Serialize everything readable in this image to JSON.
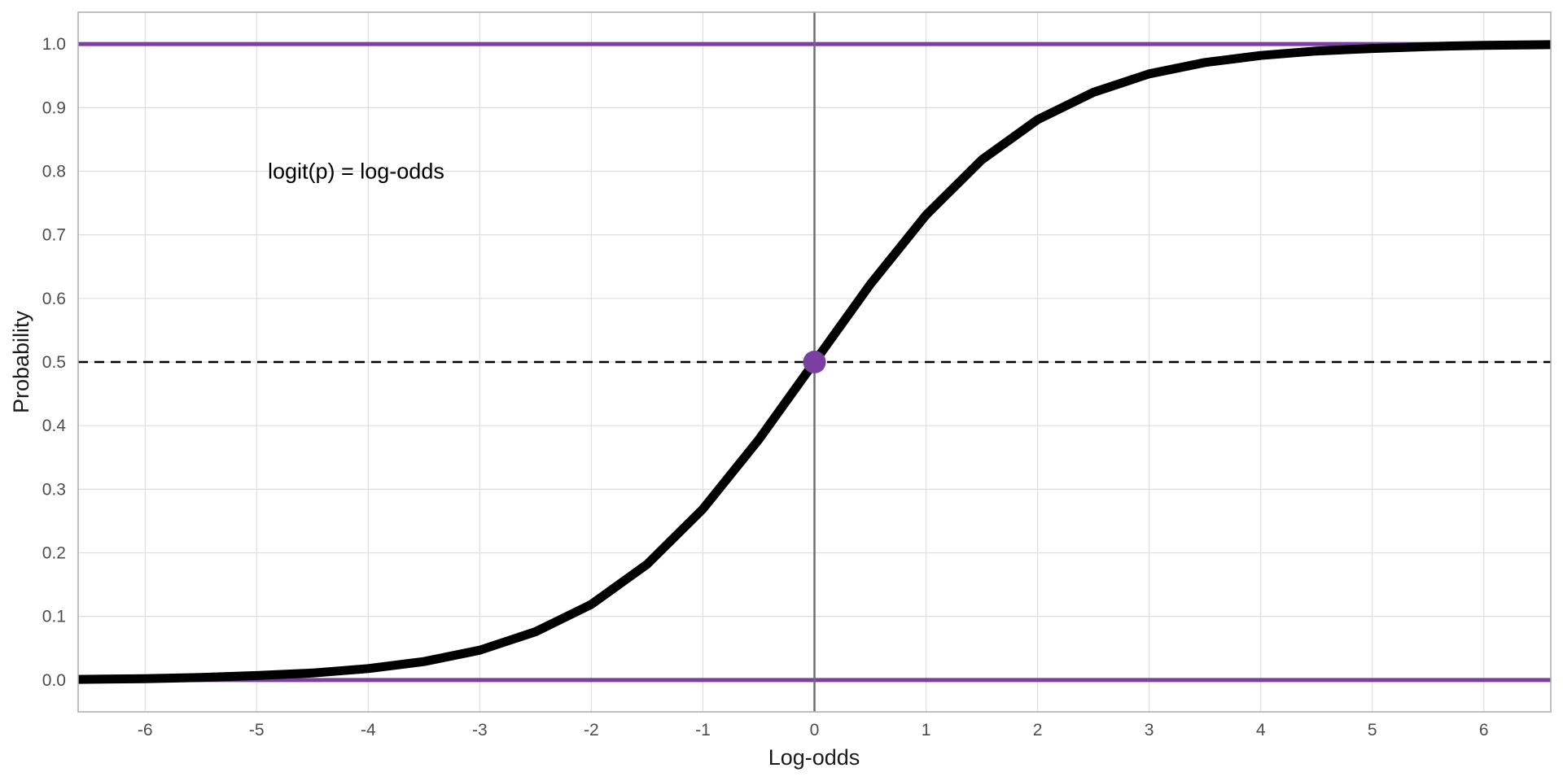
{
  "chart_data": {
    "type": "line",
    "title": "",
    "xlabel": "Log-odds",
    "ylabel": "Probability",
    "xlim": [
      -6.6,
      6.6
    ],
    "ylim": [
      -0.05,
      1.05
    ],
    "x_ticks": [
      -6,
      -5,
      -4,
      -3,
      -2,
      -1,
      0,
      1,
      2,
      3,
      4,
      5,
      6
    ],
    "x_tick_labels": [
      "-6",
      "-5",
      "-4",
      "-3",
      "-2",
      "-1",
      "0",
      "1",
      "2",
      "3",
      "4",
      "5",
      "6"
    ],
    "y_ticks": [
      0,
      0.1,
      0.2,
      0.3,
      0.4,
      0.5,
      0.6,
      0.7,
      0.8,
      0.9,
      1
    ],
    "y_tick_labels": [
      "0.0",
      "0.1",
      "0.2",
      "0.3",
      "0.4",
      "0.5",
      "0.6",
      "0.7",
      "0.8",
      "0.9",
      "1.0"
    ],
    "grid": true,
    "series": [
      {
        "color": "#000000",
        "x": [
          -6.6,
          -6,
          -5.5,
          -5,
          -4.5,
          -4,
          -3.5,
          -3,
          -2.5,
          -2,
          -1.5,
          -1,
          -0.5,
          0,
          0.5,
          1,
          1.5,
          2,
          2.5,
          3,
          3.5,
          4,
          4.5,
          5,
          5.5,
          6,
          6.6
        ],
        "y": [
          0.001,
          0.002,
          0.004,
          0.007,
          0.011,
          0.018,
          0.029,
          0.047,
          0.076,
          0.119,
          0.182,
          0.269,
          0.378,
          0.5,
          0.622,
          0.731,
          0.818,
          0.881,
          0.924,
          0.953,
          0.971,
          0.982,
          0.989,
          0.993,
          0.996,
          0.998,
          0.999
        ]
      }
    ],
    "reference_lines": [
      {
        "orientation": "horizontal",
        "value": 1.0,
        "style": "solid",
        "color": "#7a3fa0"
      },
      {
        "orientation": "horizontal",
        "value": 0.0,
        "style": "solid",
        "color": "#7a3fa0"
      },
      {
        "orientation": "horizontal",
        "value": 0.5,
        "style": "dashed",
        "color": "#000000"
      },
      {
        "orientation": "vertical",
        "value": 0,
        "style": "solid",
        "color": "#6e6e6e"
      }
    ],
    "highlight_point": {
      "x": 0,
      "y": 0.5,
      "color": "#7a3fa0"
    },
    "annotation": {
      "text": "logit(p) = log-odds",
      "x": -4.9,
      "y": 0.8
    }
  }
}
